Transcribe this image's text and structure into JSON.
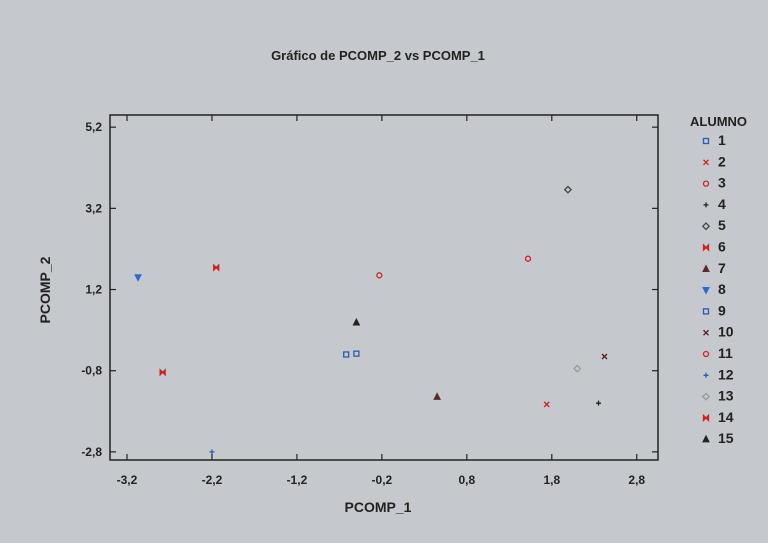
{
  "chart_data": {
    "type": "scatter",
    "title": "Gráfico de PCOMP_2 vs PCOMP_1",
    "xlabel": "PCOMP_1",
    "ylabel": "PCOMP_2",
    "xlim": [
      -3.4,
      3.05
    ],
    "ylim": [
      -3.0,
      5.5
    ],
    "xticks": [
      "-3,2",
      "-2,2",
      "-1,2",
      "-0,2",
      "0,8",
      "1,8",
      "2,8"
    ],
    "yticks": [
      "5,2",
      "3,2",
      "1,2",
      "-0,8",
      "-2,8"
    ],
    "xtick_values": [
      -3.2,
      -2.2,
      -1.2,
      -0.2,
      0.8,
      1.8,
      2.8
    ],
    "ytick_values": [
      5.2,
      3.2,
      1.2,
      -0.8,
      -2.8
    ],
    "grid": false,
    "legend_title": "ALUMNO",
    "legend_position": "right",
    "series": [
      {
        "name": "1",
        "marker": "square",
        "color": "#2a5bb0",
        "x": [
          -0.62
        ],
        "y": [
          -0.4
        ]
      },
      {
        "name": "2",
        "marker": "x",
        "color": "#d02020",
        "x": [
          1.74
        ],
        "y": [
          -1.63
        ]
      },
      {
        "name": "3",
        "marker": "circle",
        "color": "#d02030",
        "x": [
          -0.23
        ],
        "y": [
          1.55
        ]
      },
      {
        "name": "4",
        "marker": "plus",
        "color": "#222222",
        "x": [
          2.35
        ],
        "y": [
          -1.6
        ]
      },
      {
        "name": "5",
        "marker": "diamond",
        "color": "#444444",
        "x": [
          1.99
        ],
        "y": [
          3.66
        ]
      },
      {
        "name": "6",
        "marker": "bowtie",
        "color": "#d02020",
        "x": [
          -2.15
        ],
        "y": [
          1.74
        ]
      },
      {
        "name": "7",
        "marker": "triangle",
        "color": "#5a2a2a",
        "x": [
          0.45
        ],
        "y": [
          -1.44
        ]
      },
      {
        "name": "8",
        "marker": "triangle-down",
        "color": "#2a6ad0",
        "x": [
          -3.07
        ],
        "y": [
          1.5
        ]
      },
      {
        "name": "9",
        "marker": "square",
        "color": "#2a5bb0",
        "x": [
          -0.5
        ],
        "y": [
          -0.38
        ]
      },
      {
        "name": "10",
        "marker": "x",
        "color": "#5a1a1a",
        "x": [
          2.42
        ],
        "y": [
          -0.45
        ]
      },
      {
        "name": "11",
        "marker": "circle",
        "color": "#d02030",
        "x": [
          1.52
        ],
        "y": [
          1.96
        ]
      },
      {
        "name": "12",
        "marker": "plus",
        "color": "#2a5bb0",
        "x": [
          -2.2
        ],
        "y": [
          -2.8
        ]
      },
      {
        "name": "13",
        "marker": "diamond",
        "color": "#999999",
        "x": [
          2.1
        ],
        "y": [
          -0.75
        ]
      },
      {
        "name": "14",
        "marker": "bowtie",
        "color": "#d02020",
        "x": [
          -2.78
        ],
        "y": [
          -0.84
        ]
      },
      {
        "name": "15",
        "marker": "triangle",
        "color": "#222222",
        "x": [
          -0.5
        ],
        "y": [
          0.39
        ]
      }
    ]
  }
}
